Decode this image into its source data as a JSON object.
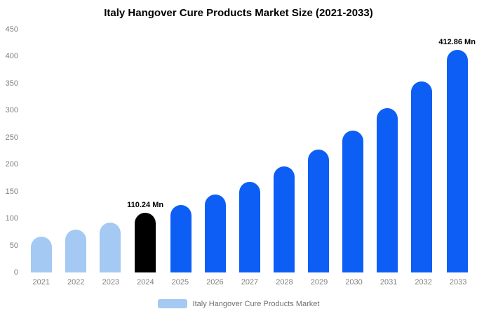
{
  "title": "Italy Hangover Cure Products Market Size (2021-2033)",
  "legend": {
    "label": "Italy Hangover Cure Products Market",
    "swatch_color": "#a4c9f2"
  },
  "colors": {
    "light_blue_bar": "#a4c9f2",
    "highlight_bar": "#000000",
    "primary_blue_bar": "#0d5ef5",
    "axis_text": "#808080"
  },
  "chart_data": {
    "type": "bar",
    "title": "Italy Hangover Cure Products Market Size (2021-2033)",
    "xlabel": "",
    "ylabel": "",
    "categories": [
      "2021",
      "2022",
      "2023",
      "2024",
      "2025",
      "2026",
      "2027",
      "2028",
      "2029",
      "2030",
      "2031",
      "2032",
      "2033"
    ],
    "values": [
      67,
      79,
      92,
      110.24,
      125,
      145,
      168,
      196,
      227,
      263,
      305,
      354,
      412.86
    ],
    "ylim": [
      0,
      450
    ],
    "ytick_interval": 50,
    "grid": false,
    "legend_position": "bottom",
    "bar_colors": [
      "#a4c9f2",
      "#a4c9f2",
      "#a4c9f2",
      "#000000",
      "#0d5ef5",
      "#0d5ef5",
      "#0d5ef5",
      "#0d5ef5",
      "#0d5ef5",
      "#0d5ef5",
      "#0d5ef5",
      "#0d5ef5",
      "#0d5ef5"
    ],
    "annotations": [
      {
        "category": "2024",
        "text": "110.24 Mn"
      },
      {
        "category": "2033",
        "text": "412.86 Mn"
      }
    ]
  }
}
